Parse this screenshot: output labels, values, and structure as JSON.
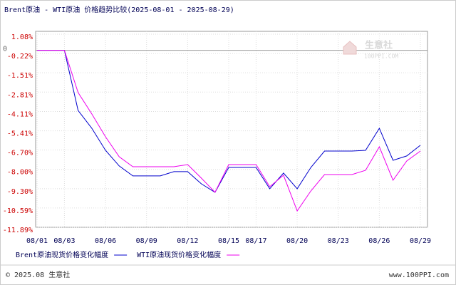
{
  "chart_data": {
    "type": "line",
    "title": "Brent原油 - WTI原油 价格趋势比较(2025-08-01 - 2025-08-29)",
    "categories": [
      "08/01",
      null,
      "08/03",
      null,
      null,
      "08/06",
      null,
      null,
      "08/09",
      null,
      null,
      "08/12",
      null,
      null,
      "08/15",
      null,
      "08/17",
      null,
      null,
      "08/20",
      null,
      null,
      "08/23",
      null,
      null,
      "08/26",
      null,
      null,
      "08/29"
    ],
    "series": [
      {
        "name": "Brent原油现货价格变化幅度",
        "color": "#0000cc",
        "values": [
          0,
          0,
          0,
          -4.04,
          -5.24,
          -6.72,
          -7.77,
          -8.44,
          -8.44,
          -8.44,
          -8.15,
          -8.15,
          -8.97,
          -9.54,
          -7.87,
          -7.87,
          -7.87,
          -9.3,
          -8.25,
          -9.3,
          -7.87,
          -6.77,
          -6.77,
          -6.77,
          -6.72,
          -5.24,
          -7.39,
          -7.1,
          -6.38
        ]
      },
      {
        "name": "WTI原油现货价格变化幅度",
        "color": "#ee00ee",
        "values": [
          0,
          0,
          0,
          -2.84,
          -4.28,
          -5.81,
          -7.15,
          -7.82,
          -7.82,
          -7.82,
          -7.82,
          -7.68,
          -8.59,
          -9.54,
          -7.68,
          -7.68,
          -7.68,
          -9.16,
          -8.39,
          -10.79,
          -9.45,
          -8.35,
          -8.35,
          -8.35,
          -8.06,
          -6.48,
          -8.73,
          -7.44,
          -6.77
        ]
      }
    ],
    "ylim": [
      -11.89,
      1.08
    ],
    "yticks": [
      {
        "value": 1.08,
        "label": "1.08%"
      },
      0,
      {
        "value": -0.22,
        "label": "-0.22%"
      },
      {
        "value": -1.51,
        "label": "-1.51%"
      },
      {
        "value": -2.81,
        "label": "-2.81%"
      },
      {
        "value": -4.11,
        "label": "-4.11%"
      },
      {
        "value": -5.41,
        "label": "-5.41%"
      },
      {
        "value": -6.7,
        "label": "-6.70%"
      },
      {
        "value": -8.0,
        "label": "-8.00%"
      },
      {
        "value": -9.3,
        "label": "-9.30%"
      },
      {
        "value": -10.59,
        "label": "-10.59%"
      },
      {
        "value": -11.89,
        "label": "-11.89%"
      }
    ],
    "grid": true,
    "watermark": {
      "name": "生意社",
      "site": "100PPI.COM"
    },
    "footer": {
      "copyright": "© 2025.08 生意社",
      "site": "www.100PPI.com"
    }
  }
}
